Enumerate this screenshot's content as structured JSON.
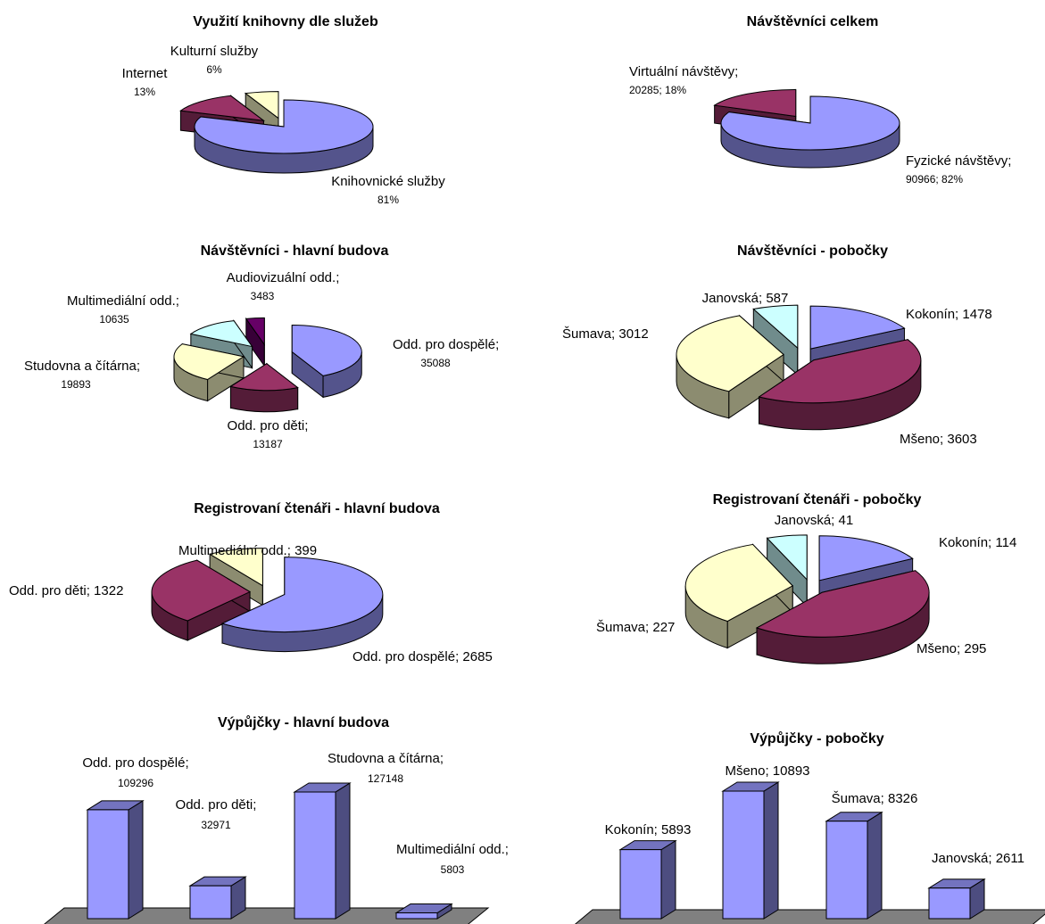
{
  "chart_data": [
    {
      "type": "pie",
      "title": "Využití knihovny dle služeb",
      "slices": [
        {
          "name": "Knihovnické služby",
          "value_label": "81%",
          "value": 81,
          "color": "#9999ff"
        },
        {
          "name": "Internet",
          "value_label": "13%",
          "value": 13,
          "color": "#993366"
        },
        {
          "name": "Kulturní služby",
          "value_label": "6%",
          "value": 6,
          "color": "#ffffcc"
        }
      ]
    },
    {
      "type": "pie",
      "title": "Návštěvníci celkem",
      "slices": [
        {
          "name": "Fyzické návštěvy;",
          "value_label": "90966; 82%",
          "value": 90966,
          "color": "#9999ff"
        },
        {
          "name": "Virtuální návštěvy;",
          "value_label": "20285; 18%",
          "value": 20285,
          "color": "#993366"
        }
      ]
    },
    {
      "type": "pie",
      "title": "Návštěvníci - hlavní budova",
      "slices": [
        {
          "name": "Odd. pro dospělé;",
          "value_label": "35088",
          "value": 35088,
          "color": "#9999ff"
        },
        {
          "name": "Odd. pro děti;",
          "value_label": "13187",
          "value": 13187,
          "color": "#993366"
        },
        {
          "name": "Studovna a čítárna;",
          "value_label": "19893",
          "value": 19893,
          "color": "#ffffcc"
        },
        {
          "name": "Multimediální odd.;",
          "value_label": "10635",
          "value": 10635,
          "color": "#ccffff"
        },
        {
          "name": "Audiovizuální odd.;",
          "value_label": "3483",
          "value": 3483,
          "color": "#660066"
        }
      ]
    },
    {
      "type": "pie",
      "title": "Návštěvníci - pobočky",
      "slices": [
        {
          "name": "Kokonín",
          "label": "Kokonín; 1478",
          "value": 1478,
          "color": "#9999ff"
        },
        {
          "name": "Mšeno",
          "label": "Mšeno; 3603",
          "value": 3603,
          "color": "#993366"
        },
        {
          "name": "Šumava",
          "label": "Šumava; 3012",
          "value": 3012,
          "color": "#ffffcc"
        },
        {
          "name": "Janovská",
          "label": "Janovská; 587",
          "value": 587,
          "color": "#ccffff"
        }
      ]
    },
    {
      "type": "pie",
      "title": "Registrovaní čtenáři - hlavní budova",
      "slices": [
        {
          "name": "Odd. pro dospělé",
          "label": "Odd. pro dospělé; 2685",
          "value": 2685,
          "color": "#9999ff"
        },
        {
          "name": "Odd. pro děti",
          "label": "Odd. pro děti; 1322",
          "value": 1322,
          "color": "#993366"
        },
        {
          "name": "Multimediální odd.",
          "label": "Multimediální odd.; 399",
          "value": 399,
          "color": "#ffffcc"
        }
      ]
    },
    {
      "type": "pie",
      "title": "Registrovaní čtenáři - pobočky",
      "slices": [
        {
          "name": "Kokonín",
          "label": "Kokonín; 114",
          "value": 114,
          "color": "#9999ff"
        },
        {
          "name": "Mšeno",
          "label": "Mšeno; 295",
          "value": 295,
          "color": "#993366"
        },
        {
          "name": "Šumava",
          "label": "Šumava; 227",
          "value": 227,
          "color": "#ffffcc"
        },
        {
          "name": "Janovská",
          "label": "Janovská; 41",
          "value": 41,
          "color": "#ccffff"
        }
      ]
    },
    {
      "type": "bar",
      "title": "Výpůjčky - hlavní budova",
      "bars": [
        {
          "name": "Odd. pro dospělé;",
          "value_label": "109296",
          "value": 109296
        },
        {
          "name": "Odd. pro děti;",
          "value_label": "32971",
          "value": 32971
        },
        {
          "name": "Studovna a čítárna;",
          "value_label": "127148",
          "value": 127148
        },
        {
          "name": "Multimediální odd.;",
          "value_label": "5803",
          "value": 5803
        }
      ],
      "bar_color": "#9999ff",
      "floor_color": "#808080"
    },
    {
      "type": "bar",
      "title": "Výpůjčky - pobočky",
      "bars": [
        {
          "name": "Kokonín",
          "label": "Kokonín; 5893",
          "value": 5893
        },
        {
          "name": "Mšeno",
          "label": "Mšeno; 10893",
          "value": 10893
        },
        {
          "name": "Šumava",
          "label": "Šumava; 8326",
          "value": 8326
        },
        {
          "name": "Janovská",
          "label": "Janovská; 2611",
          "value": 2611
        }
      ],
      "bar_color": "#9999ff",
      "floor_color": "#808080"
    }
  ]
}
